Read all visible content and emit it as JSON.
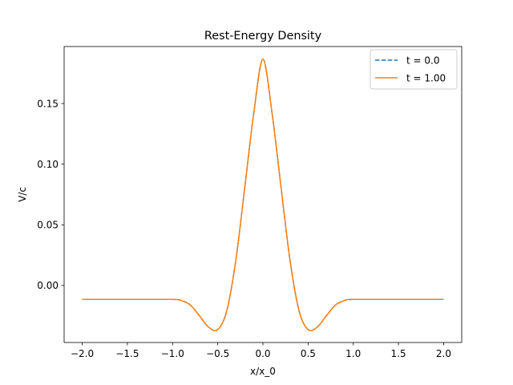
{
  "chart_data": {
    "type": "line",
    "title": "Rest-Energy Density",
    "xlabel": "x/x_0",
    "ylabel": "V/c",
    "xlim": [
      -2.2,
      2.2
    ],
    "ylim": [
      -0.047,
      0.197
    ],
    "x_ticks": [
      -2.0,
      -1.5,
      -1.0,
      -0.5,
      0.0,
      0.5,
      1.0,
      1.5,
      2.0
    ],
    "x_tick_labels": [
      "−2.0",
      "−1.5",
      "−1.0",
      "−0.5",
      "0.0",
      "0.5",
      "1.0",
      "1.5",
      "2.0"
    ],
    "y_ticks": [
      0.0,
      0.05,
      0.1,
      0.15
    ],
    "y_tick_labels": [
      "0.00",
      "0.05",
      "0.10",
      "0.15"
    ],
    "grid": false,
    "legend_position": "top-right",
    "series": [
      {
        "name": "t = 0.0",
        "color": "#1f77b4",
        "linestyle": "dashed",
        "x": [
          -2.0,
          -1.5,
          -1.0,
          -0.9,
          -0.8,
          -0.7,
          -0.6,
          -0.5,
          -0.4,
          -0.3,
          -0.2,
          -0.1,
          0.0,
          0.1,
          0.2,
          0.3,
          0.4,
          0.5,
          0.6,
          0.7,
          0.8,
          0.9,
          1.0,
          1.5,
          2.0
        ],
        "y": [
          -0.0115,
          -0.0115,
          -0.0115,
          -0.0125,
          -0.0163,
          -0.0252,
          -0.0344,
          -0.0364,
          -0.0208,
          0.0207,
          0.0813,
          0.1428,
          0.1865,
          0.1428,
          0.0813,
          0.0207,
          -0.0208,
          -0.0364,
          -0.0344,
          -0.0252,
          -0.0163,
          -0.0125,
          -0.0115,
          -0.0115,
          -0.0115
        ]
      },
      {
        "name": "t = 1.00",
        "color": "#ff7f0e",
        "linestyle": "solid",
        "x": [
          -2.0,
          -1.5,
          -1.0,
          -0.9,
          -0.8,
          -0.7,
          -0.6,
          -0.5,
          -0.4,
          -0.3,
          -0.2,
          -0.1,
          0.0,
          0.1,
          0.2,
          0.3,
          0.4,
          0.5,
          0.6,
          0.7,
          0.8,
          0.9,
          1.0,
          1.5,
          2.0
        ],
        "y": [
          -0.0115,
          -0.0115,
          -0.0115,
          -0.0125,
          -0.0163,
          -0.0252,
          -0.0344,
          -0.0364,
          -0.0208,
          0.0207,
          0.0813,
          0.1428,
          0.1865,
          0.1428,
          0.0813,
          0.0207,
          -0.0208,
          -0.0364,
          -0.0344,
          -0.0252,
          -0.0163,
          -0.0125,
          -0.0115,
          -0.0115,
          -0.0115
        ]
      }
    ]
  }
}
